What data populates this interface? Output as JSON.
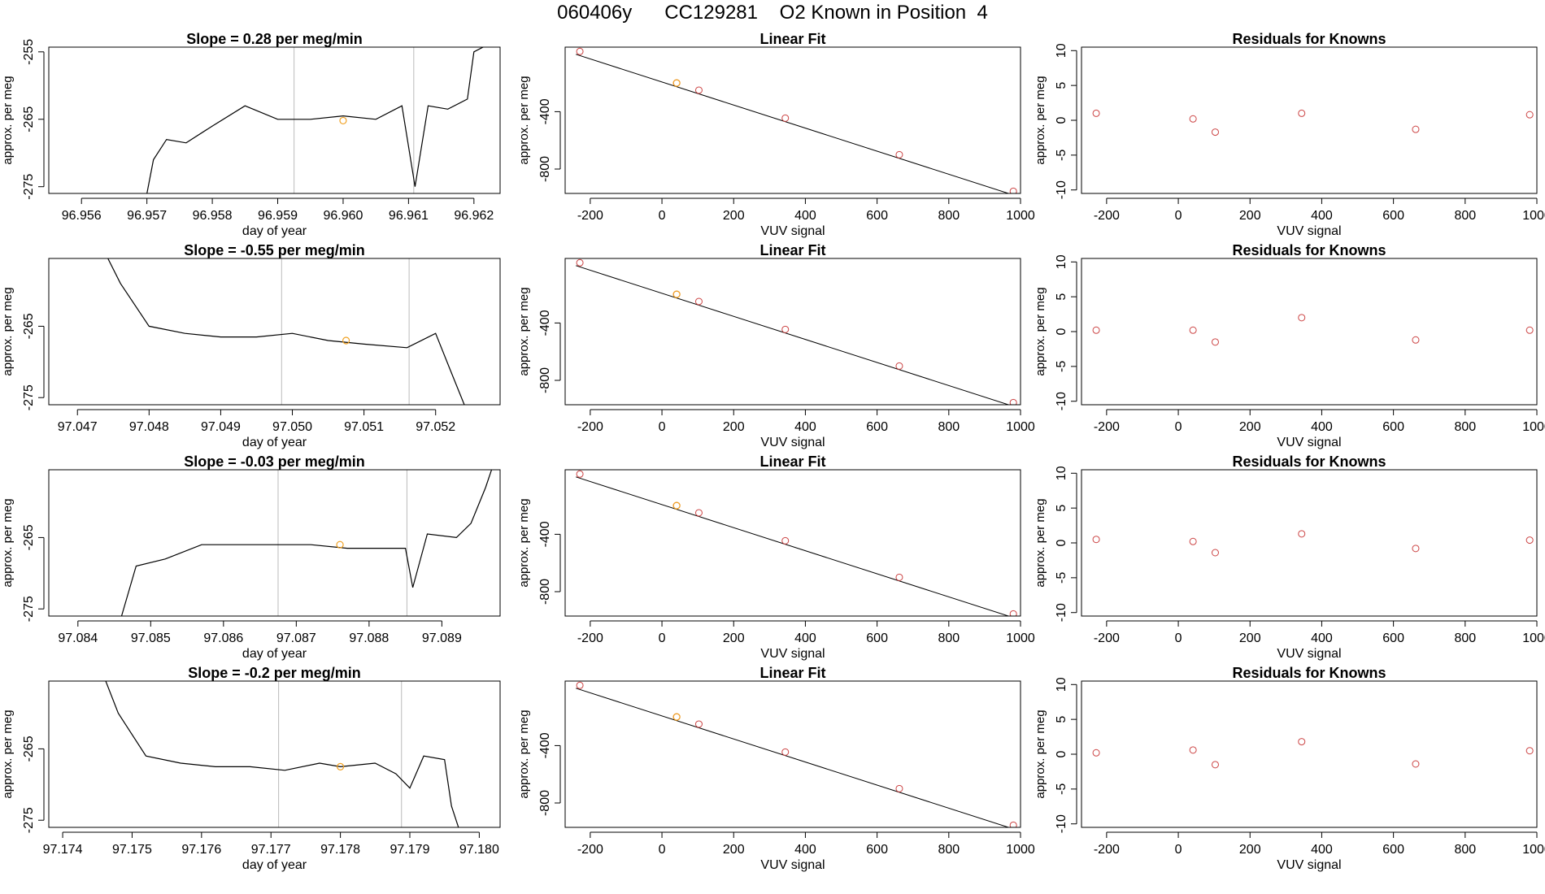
{
  "page": {
    "title": "060406y      CC129281    O2 Known in Position  4"
  },
  "chart_data": [
    {
      "type": "line",
      "title": "Slope =  0.28  per meg/min",
      "xlabel": "day of year",
      "ylabel": "approx. per meg",
      "xticks": [
        "96.956",
        "96.957",
        "96.958",
        "96.959",
        "96.960",
        "96.961",
        "96.962"
      ],
      "yticks": [
        "-255",
        "-265",
        "-275"
      ],
      "xlim": [
        96.9555,
        96.9624
      ],
      "ylim": [
        -276,
        -254.3
      ],
      "vlines": [
        96.95925,
        96.96108
      ],
      "series": [
        {
          "values": [
            [
              96.957,
              -276
            ],
            [
              96.9571,
              -271
            ],
            [
              96.9573,
              -268
            ],
            [
              96.9576,
              -268.5
            ],
            [
              96.958,
              -266
            ],
            [
              96.9585,
              -263
            ],
            [
              96.959,
              -265
            ],
            [
              96.9595,
              -265
            ],
            [
              96.96,
              -264.5
            ],
            [
              96.9605,
              -265
            ],
            [
              96.9609,
              -263
            ],
            [
              96.9611,
              -275
            ],
            [
              96.9613,
              -263
            ],
            [
              96.9616,
              -263.5
            ],
            [
              96.9619,
              -262
            ],
            [
              96.962,
              -255
            ],
            [
              96.9622,
              -254
            ]
          ]
        }
      ],
      "highlight": {
        "x": 96.96,
        "y": -265.2
      }
    },
    {
      "type": "scatter",
      "title": "Linear Fit",
      "xlabel": "VUV signal",
      "ylabel": "approx. per meg",
      "xticks": [
        "-200",
        "0",
        "200",
        "400",
        "600",
        "800",
        "1000"
      ],
      "yticks": [
        "-400",
        "-800"
      ],
      "xlim": [
        -270,
        1000
      ],
      "ylim": [
        -970,
        50
      ],
      "fit": [
        [
          -240,
          0
        ],
        [
          985,
          -985
        ]
      ],
      "points": [
        [
          -229,
          20
        ],
        [
          41,
          -200
        ],
        [
          103,
          -250
        ],
        [
          344,
          -445
        ],
        [
          662,
          -700
        ],
        [
          980,
          -955
        ]
      ],
      "highlight": {
        "x": 41,
        "y": -200
      }
    },
    {
      "type": "scatter",
      "title": "Residuals for Knowns",
      "xlabel": "VUV signal",
      "ylabel": "approx. per meg",
      "xticks": [
        "-200",
        "0",
        "200",
        "400",
        "600",
        "800",
        "1000"
      ],
      "yticks": [
        "10",
        "5",
        "0",
        "-5",
        "-10"
      ],
      "xlim": [
        -270,
        1000
      ],
      "ylim": [
        -10.5,
        10.5
      ],
      "points": [
        [
          -229,
          1
        ],
        [
          41,
          0.2
        ],
        [
          103,
          -1.7
        ],
        [
          344,
          1
        ],
        [
          662,
          -1.3
        ],
        [
          980,
          0.8
        ]
      ]
    },
    {
      "type": "line",
      "title": "Slope =  -0.55  per meg/min",
      "xlabel": "day of year",
      "ylabel": "approx. per meg",
      "xticks": [
        "97.047",
        "97.048",
        "97.049",
        "97.050",
        "97.051",
        "97.052"
      ],
      "yticks": [
        "-265",
        "-275"
      ],
      "xlim": [
        97.0466,
        97.0529
      ],
      "ylim": [
        -276,
        -255.5
      ],
      "vlines": [
        97.04985,
        97.05163
      ],
      "series": [
        {
          "values": [
            [
              97.0474,
              -255
            ],
            [
              97.0476,
              -259
            ],
            [
              97.048,
              -265
            ],
            [
              97.0485,
              -266
            ],
            [
              97.049,
              -266.5
            ],
            [
              97.0495,
              -266.5
            ],
            [
              97.05,
              -266
            ],
            [
              97.0505,
              -267
            ],
            [
              97.051,
              -267.5
            ],
            [
              97.0516,
              -268
            ],
            [
              97.052,
              -266
            ],
            [
              97.0522,
              -271
            ],
            [
              97.0524,
              -276
            ]
          ]
        }
      ],
      "highlight": {
        "x": 97.05075,
        "y": -267
      }
    },
    {
      "type": "scatter",
      "title": "Linear Fit",
      "xlabel": "VUV signal",
      "ylabel": "approx. per meg",
      "xticks": [
        "-200",
        "0",
        "200",
        "400",
        "600",
        "800",
        "1000"
      ],
      "yticks": [
        "-400",
        "-800"
      ],
      "xlim": [
        -270,
        1000
      ],
      "ylim": [
        -970,
        50
      ],
      "fit": [
        [
          -240,
          0
        ],
        [
          985,
          -985
        ]
      ],
      "points": [
        [
          -229,
          20
        ],
        [
          41,
          -200
        ],
        [
          103,
          -250
        ],
        [
          344,
          -445
        ],
        [
          662,
          -700
        ],
        [
          980,
          -955
        ]
      ],
      "highlight": {
        "x": 41,
        "y": -200
      }
    },
    {
      "type": "scatter",
      "title": "Residuals for Knowns",
      "xlabel": "VUV signal",
      "ylabel": "approx. per meg",
      "xticks": [
        "-200",
        "0",
        "200",
        "400",
        "600",
        "800",
        "1000"
      ],
      "yticks": [
        "10",
        "5",
        "0",
        "-5",
        "-10"
      ],
      "xlim": [
        -270,
        1000
      ],
      "ylim": [
        -10.5,
        10.5
      ],
      "points": [
        [
          -229,
          0.2
        ],
        [
          41,
          0.2
        ],
        [
          103,
          -1.5
        ],
        [
          344,
          2
        ],
        [
          662,
          -1.2
        ],
        [
          980,
          0.2
        ]
      ]
    },
    {
      "type": "line",
      "title": "Slope =  -0.03  per meg/min",
      "xlabel": "day of year",
      "ylabel": "approx. per meg",
      "xticks": [
        "97.084",
        "97.085",
        "97.086",
        "97.087",
        "97.088",
        "97.089"
      ],
      "yticks": [
        "-265",
        "-275"
      ],
      "xlim": [
        97.0836,
        97.0898
      ],
      "ylim": [
        -276,
        -255.5
      ],
      "vlines": [
        97.08675,
        97.08852
      ],
      "series": [
        {
          "values": [
            [
              97.0846,
              -276
            ],
            [
              97.0848,
              -269
            ],
            [
              97.0852,
              -268
            ],
            [
              97.0857,
              -266
            ],
            [
              97.0862,
              -266
            ],
            [
              97.0867,
              -266
            ],
            [
              97.0872,
              -266
            ],
            [
              97.0877,
              -266.5
            ],
            [
              97.0882,
              -266.5
            ],
            [
              97.0885,
              -266.5
            ],
            [
              97.0886,
              -272
            ],
            [
              97.0888,
              -264.5
            ],
            [
              97.0892,
              -265
            ],
            [
              97.0894,
              -263
            ],
            [
              97.0896,
              -258
            ],
            [
              97.0897,
              -255
            ]
          ]
        }
      ],
      "highlight": {
        "x": 97.0876,
        "y": -266
      }
    },
    {
      "type": "scatter",
      "title": "Linear Fit",
      "xlabel": "VUV signal",
      "ylabel": "approx. per meg",
      "xticks": [
        "-200",
        "0",
        "200",
        "400",
        "600",
        "800",
        "1000"
      ],
      "yticks": [
        "-400",
        "-800"
      ],
      "xlim": [
        -270,
        1000
      ],
      "ylim": [
        -970,
        50
      ],
      "fit": [
        [
          -240,
          0
        ],
        [
          985,
          -985
        ]
      ],
      "points": [
        [
          -229,
          20
        ],
        [
          41,
          -200
        ],
        [
          103,
          -250
        ],
        [
          344,
          -445
        ],
        [
          662,
          -700
        ],
        [
          980,
          -955
        ]
      ],
      "highlight": {
        "x": 41,
        "y": -200
      }
    },
    {
      "type": "scatter",
      "title": "Residuals for Knowns",
      "xlabel": "VUV signal",
      "ylabel": "approx. per meg",
      "xticks": [
        "-200",
        "0",
        "200",
        "400",
        "600",
        "800",
        "1000"
      ],
      "yticks": [
        "10",
        "5",
        "0",
        "-5",
        "-10"
      ],
      "xlim": [
        -270,
        1000
      ],
      "ylim": [
        -10.5,
        10.5
      ],
      "points": [
        [
          -229,
          0.5
        ],
        [
          41,
          0.2
        ],
        [
          103,
          -1.4
        ],
        [
          344,
          1.3
        ],
        [
          662,
          -0.8
        ],
        [
          980,
          0.4
        ]
      ]
    },
    {
      "type": "line",
      "title": "Slope =  -0.2  per meg/min",
      "xlabel": "day of year",
      "ylabel": "approx. per meg",
      "xticks": [
        "97.174",
        "97.175",
        "97.176",
        "97.177",
        "97.178",
        "97.179",
        "97.180"
      ],
      "yticks": [
        "-265",
        "-275"
      ],
      "xlim": [
        97.1738,
        97.1803
      ],
      "ylim": [
        -276,
        -255.5
      ],
      "vlines": [
        97.17711,
        97.17888
      ],
      "series": [
        {
          "values": [
            [
              97.1746,
              -255
            ],
            [
              97.1748,
              -260
            ],
            [
              97.1752,
              -266
            ],
            [
              97.1757,
              -267
            ],
            [
              97.1762,
              -267.5
            ],
            [
              97.1767,
              -267.5
            ],
            [
              97.1772,
              -268
            ],
            [
              97.1777,
              -267
            ],
            [
              97.178,
              -267.5
            ],
            [
              97.1785,
              -267
            ],
            [
              97.1788,
              -268.5
            ],
            [
              97.179,
              -270.5
            ],
            [
              97.1792,
              -266
            ],
            [
              97.1795,
              -266.5
            ],
            [
              97.1796,
              -273
            ],
            [
              97.1797,
              -276
            ]
          ]
        }
      ],
      "highlight": {
        "x": 97.178,
        "y": -267.5
      }
    },
    {
      "type": "scatter",
      "title": "Linear Fit",
      "xlabel": "VUV signal",
      "ylabel": "approx. per meg",
      "xticks": [
        "-200",
        "0",
        "200",
        "400",
        "600",
        "800",
        "1000"
      ],
      "yticks": [
        "-400",
        "-800"
      ],
      "xlim": [
        -270,
        1000
      ],
      "ylim": [
        -970,
        50
      ],
      "fit": [
        [
          -240,
          0
        ],
        [
          985,
          -985
        ]
      ],
      "points": [
        [
          -229,
          20
        ],
        [
          41,
          -200
        ],
        [
          103,
          -250
        ],
        [
          344,
          -445
        ],
        [
          662,
          -700
        ],
        [
          980,
          -955
        ]
      ],
      "highlight": {
        "x": 41,
        "y": -200
      }
    },
    {
      "type": "scatter",
      "title": "Residuals for Knowns",
      "xlabel": "VUV signal",
      "ylabel": "approx. per meg",
      "xticks": [
        "-200",
        "0",
        "200",
        "400",
        "600",
        "800",
        "1000"
      ],
      "yticks": [
        "10",
        "5",
        "0",
        "-5",
        "-10"
      ],
      "xlim": [
        -270,
        1000
      ],
      "ylim": [
        -10.5,
        10.5
      ],
      "points": [
        [
          -229,
          0.2
        ],
        [
          41,
          0.6
        ],
        [
          103,
          -1.5
        ],
        [
          344,
          1.8
        ],
        [
          662,
          -1.4
        ],
        [
          980,
          0.5
        ]
      ]
    }
  ],
  "colors": {
    "line": "#000000",
    "points": "#cc4444",
    "highlight": "#f0a020",
    "vline": "#bbbbbb",
    "axis": "#000000"
  }
}
